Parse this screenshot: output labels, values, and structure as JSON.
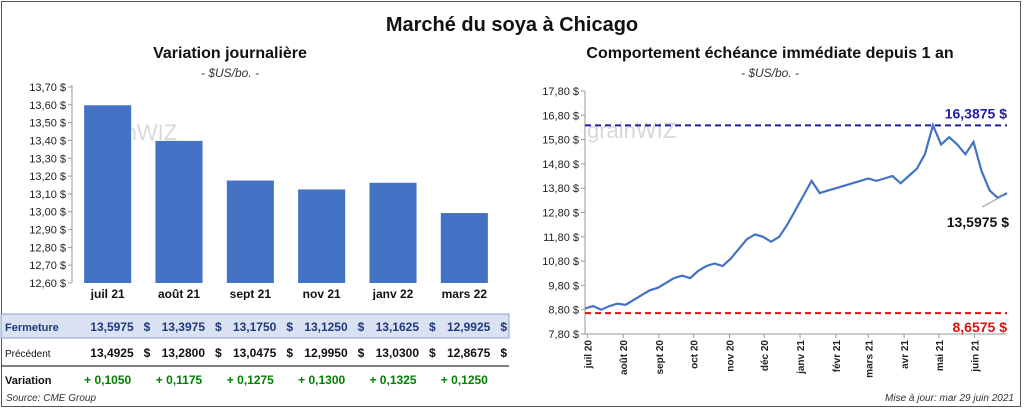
{
  "main_title": "Marché du soya à Chicago",
  "left": {
    "title": "Variation journalière",
    "unit": "- $US/bo. -",
    "watermark": "grainWIZ",
    "yticks": [
      "13,70 $",
      "13,60 $",
      "13,50 $",
      "13,40 $",
      "13,30 $",
      "13,20 $",
      "13,10 $",
      "13,00 $",
      "12,90 $",
      "12,80 $",
      "12,70 $",
      "12,60 $"
    ],
    "row_labels": {
      "fermeture": "Fermeture",
      "precedent": "Précédent",
      "variation": "Variation"
    },
    "fermeture": [
      "13,5975",
      "13,3975",
      "13,1750",
      "13,1250",
      "13,1625",
      "12,9925"
    ],
    "precedent": [
      "13,4925",
      "13,2800",
      "13,0475",
      "12,9950",
      "13,0300",
      "12,8675"
    ],
    "variation": [
      "+ 0,1050",
      "+ 0,1175",
      "+ 0,1275",
      "+ 0,1300",
      "+ 0,1325",
      "+ 0,1250"
    ],
    "currency": "$"
  },
  "right": {
    "title": "Comportement  échéance immédiate depuis 1 an",
    "unit": "- $US/bo. -",
    "watermark": "grainWIZ",
    "yticks": [
      "17,80 $",
      "16,80 $",
      "15,80 $",
      "14,80 $",
      "13,80 $",
      "12,80 $",
      "11,80 $",
      "10,80 $",
      "9,80 $",
      "8,80 $",
      "7,80 $"
    ],
    "max_label": "16,3875 $",
    "min_label": "8,6575 $",
    "last_label": "13,5975 $"
  },
  "footer": {
    "source": "Source: CME Group",
    "updated": "Mise à jour: mar 29 juin 2021"
  },
  "colors": {
    "bar": "#4472C4",
    "line": "#4472C4",
    "max_line": "#1F1FA0",
    "min_line": "#E01010",
    "max_text": "#1F1FA0",
    "min_text": "#E01010",
    "highlight_row": "#D9E1F2",
    "positive": "#008000"
  },
  "chart_data": [
    {
      "type": "bar",
      "title": "Variation journalière",
      "categories": [
        "juil 21",
        "août 21",
        "sept 21",
        "nov 21",
        "janv 22",
        "mars 22"
      ],
      "values": [
        13.5975,
        13.3975,
        13.175,
        13.125,
        13.1625,
        12.9925
      ],
      "ylim": [
        12.6,
        13.7
      ],
      "ylabel": "$US/bo.",
      "grid": false
    },
    {
      "type": "line",
      "title": "Comportement  échéance immédiate depuis 1 an",
      "ylabel": "$US/bo.",
      "ylim": [
        7.8,
        17.8
      ],
      "x_ticks": [
        "juil 20",
        "août 20",
        "sept 20",
        "oct 20",
        "nov 20",
        "déc 20",
        "janv 21",
        "févr 21",
        "mars 21",
        "avr 21",
        "mai 21",
        "juin 21"
      ],
      "x_range": [
        "2020-06-29",
        "2021-06-29"
      ],
      "series": [
        {
          "x": [
            "2020-06-29",
            "2020-07-06",
            "2020-07-13",
            "2020-07-20",
            "2020-07-27",
            "2020-08-03",
            "2020-08-10",
            "2020-08-17",
            "2020-08-24",
            "2020-08-31",
            "2020-09-07",
            "2020-09-14",
            "2020-09-21",
            "2020-09-28",
            "2020-10-05",
            "2020-10-12",
            "2020-10-19",
            "2020-10-26",
            "2020-11-02",
            "2020-11-09",
            "2020-11-16",
            "2020-11-23",
            "2020-11-30",
            "2020-12-07",
            "2020-12-14",
            "2020-12-21",
            "2020-12-28",
            "2021-01-04",
            "2021-01-11",
            "2021-01-18",
            "2021-01-25",
            "2021-02-01",
            "2021-02-08",
            "2021-02-15",
            "2021-02-22",
            "2021-03-01",
            "2021-03-08",
            "2021-03-15",
            "2021-03-22",
            "2021-03-29",
            "2021-04-05",
            "2021-04-12",
            "2021-04-19",
            "2021-04-26",
            "2021-05-03",
            "2021-05-10",
            "2021-05-17",
            "2021-05-24",
            "2021-05-31",
            "2021-06-07",
            "2021-06-14",
            "2021-06-21",
            "2021-06-29"
          ],
          "values": [
            8.85,
            8.95,
            8.8,
            8.95,
            9.05,
            9.0,
            9.2,
            9.4,
            9.6,
            9.7,
            9.9,
            10.1,
            10.2,
            10.1,
            10.4,
            10.6,
            10.7,
            10.6,
            10.9,
            11.3,
            11.7,
            11.9,
            11.8,
            11.6,
            11.8,
            12.3,
            12.9,
            13.5,
            14.1,
            13.6,
            13.7,
            13.8,
            13.9,
            14.0,
            14.1,
            14.2,
            14.1,
            14.2,
            14.3,
            14.0,
            14.3,
            14.6,
            15.2,
            16.39,
            15.6,
            15.9,
            15.6,
            15.2,
            15.7,
            14.5,
            13.7,
            13.4,
            13.6
          ]
        }
      ],
      "annotations": [
        {
          "label": "16,3875 $",
          "y": 16.3875,
          "kind": "max"
        },
        {
          "label": "8,6575 $",
          "y": 8.6575,
          "kind": "min"
        },
        {
          "label": "13,5975 $",
          "y": 13.5975,
          "kind": "last"
        }
      ]
    }
  ]
}
